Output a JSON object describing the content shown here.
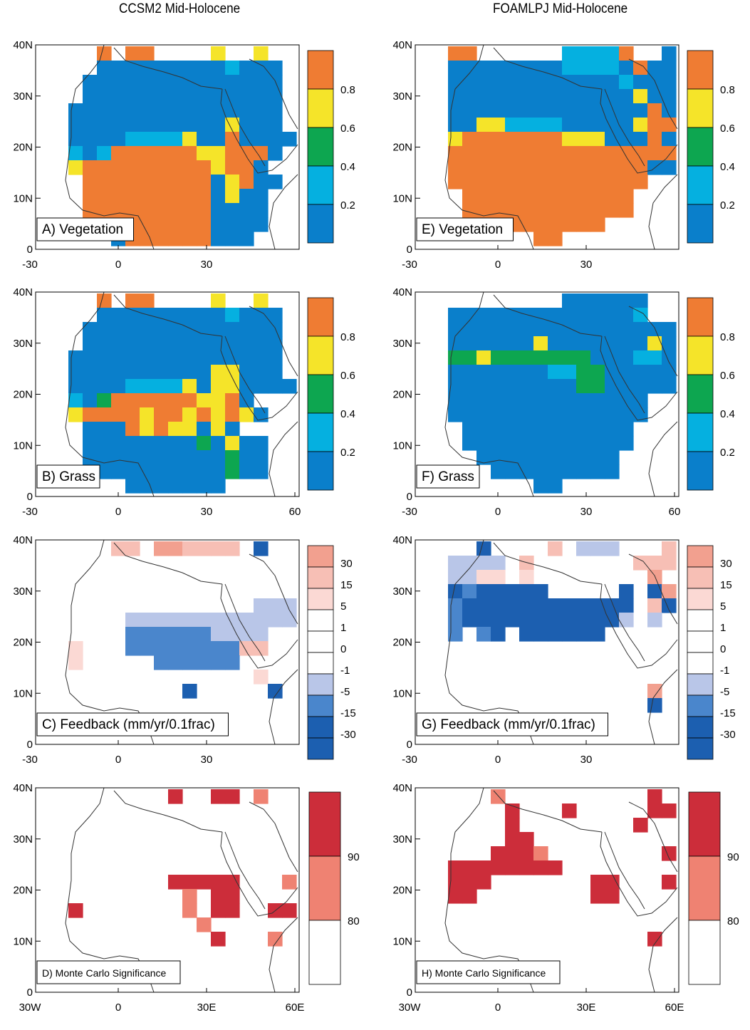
{
  "titles": {
    "left": "CCSM2 Mid-Holocene",
    "right": "FOAMLPJ Mid-Holocene"
  },
  "axes": {
    "y_ticks": [
      "40N",
      "30N",
      "20N",
      "10N",
      "0"
    ],
    "x_ticks_short": [
      "-30",
      "0",
      "30"
    ],
    "x_ticks_full": [
      "-30",
      "0",
      "30",
      "60"
    ],
    "x_ticks_bottom": [
      "30W",
      "0",
      "30E",
      "60E"
    ]
  },
  "colors": {
    "veg": [
      "#0a7fcb",
      "#05b0e0",
      "#0da650",
      "#f5e429",
      "#ef7c33"
    ],
    "feedback": [
      "#1c5fb0",
      "#4a86cc",
      "#b9c6e8",
      "#ffffff",
      "#fbd9d4",
      "#f7bfb5",
      "#f2a08f"
    ],
    "signif": [
      "#ffffff",
      "#ef8272",
      "#cc2d3a"
    ],
    "coast": "#333333"
  },
  "legends": {
    "veg": [
      "0.2",
      "0.4",
      "0.6",
      "0.8"
    ],
    "feedback": [
      "30",
      "15",
      "5",
      "1",
      "0",
      "-1",
      "-5",
      "-15",
      "-30"
    ],
    "signif": [
      "90",
      "80"
    ]
  },
  "panels": [
    {
      "id": "A",
      "label": "A) Vegetation",
      "x_axis": "short"
    },
    {
      "id": "B",
      "label": "B) Grass",
      "x_axis": "full"
    },
    {
      "id": "C",
      "label": "C) Feedback (mm/yr/0.1frac)",
      "x_axis": "short"
    },
    {
      "id": "D",
      "label": "D) Monte Carlo Significance",
      "x_axis": "bottom"
    },
    {
      "id": "E",
      "label": "E) Vegetation",
      "x_axis": "short"
    },
    {
      "id": "F",
      "label": "F) Grass",
      "x_axis": "full"
    },
    {
      "id": "G",
      "label": "G) Feedback (mm/yr/0.1frac)",
      "x_axis": "short"
    },
    {
      "id": "H",
      "label": "H) Monte Carlo Significance",
      "x_axis": "bottom"
    }
  ]
}
